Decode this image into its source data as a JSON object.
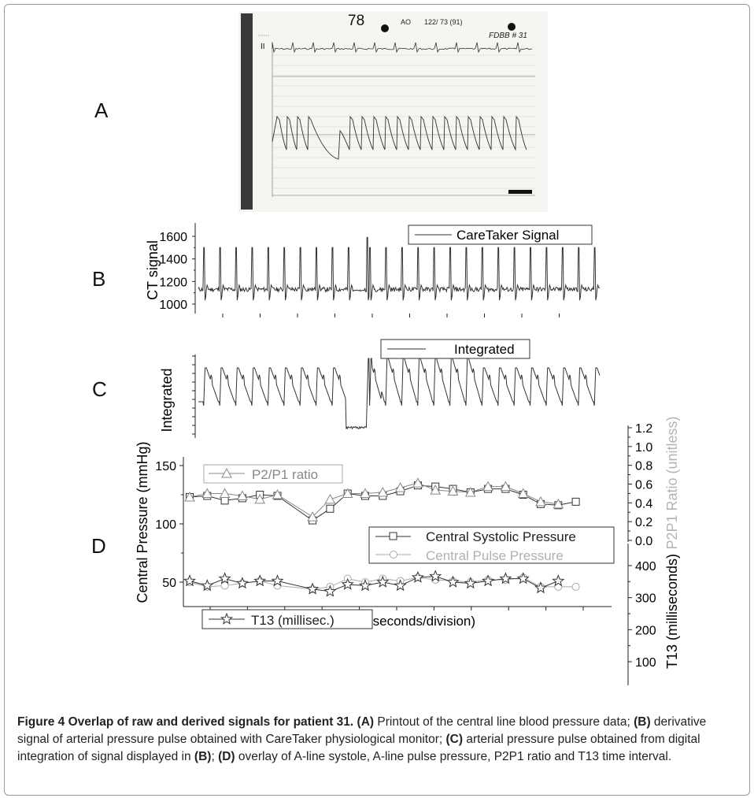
{
  "panel_labels": [
    "A",
    "B",
    "C",
    "D"
  ],
  "printout": {
    "heart_rate": "78",
    "bp_label": "AO",
    "bp_value": "122/ 73 (91)",
    "handwritten_id": "FDBB # 31",
    "lead": "II",
    "colors": {
      "paper": "#f5f5f2",
      "ink": "#333333",
      "margin_bar": "#3a3a3a"
    }
  },
  "caption": {
    "title": "Figure 4 Overlap of raw and derived signals for patient 31.",
    "a_tag": "(A)",
    "a_text": " Printout of the central line blood pressure data; ",
    "b_tag": "(B)",
    "b_text": " derivative signal of arterial pressure pulse obtained with CareTaker physiological monitor; ",
    "c_tag": "(C)",
    "c_text": " arterial pressure pulse obtained from digital integration of signal displayed in ",
    "c_ref": "(B)",
    "sep": "; ",
    "d_tag": "(D)",
    "d_text": " overlay of A-line systole, A-line pulse pressure, P2P1 ratio and T13 time interval."
  },
  "chart_data": [
    {
      "panel": "B",
      "type": "line",
      "ylabel": "CT signal",
      "ylim": [
        950,
        1680
      ],
      "yticks": [
        "1000",
        "1200",
        "1400",
        "1600"
      ],
      "legend": "CareTaker Signal",
      "legend_position": "top-right",
      "beat_times": [
        2,
        8,
        14,
        20,
        26,
        32,
        38,
        44,
        50,
        56,
        63,
        64,
        70,
        76,
        82,
        88,
        94,
        100,
        106,
        112,
        118,
        124,
        130,
        136,
        142,
        148
      ],
      "baseline": 1130,
      "peak": 1500,
      "trough": 1010,
      "color": "#333333"
    },
    {
      "panel": "C",
      "type": "line",
      "ylabel": "Integrated",
      "legend": "Integrated",
      "legend_position": "top-right",
      "tick_labels_shown": false,
      "beat_times": [
        2,
        8,
        14,
        20,
        26,
        32,
        38,
        44,
        50,
        56,
        63,
        64,
        70,
        76,
        82,
        88,
        94,
        100,
        106,
        112,
        118,
        124,
        130,
        136,
        142,
        148
      ],
      "color": "#333333"
    },
    {
      "panel": "D",
      "type": "line",
      "xlabel": "Time (2 seconds/division)",
      "ylabel_left": "Central Pressure (mmHg)",
      "ylim_left": [
        20,
        155
      ],
      "yticks_left": [
        "50",
        "100",
        "150"
      ],
      "ylabel_right_top": "P2P1 Ratio (unitless)",
      "ylim_right_top": [
        0.0,
        1.2
      ],
      "yticks_right_top": [
        "0.0",
        "0.2",
        "0.4",
        "0.6",
        "0.8",
        "1.0",
        "1.2"
      ],
      "ylabel_right_bottom": "T13 (milliseconds)",
      "ylim_right_bottom": [
        50,
        450
      ],
      "yticks_right_bottom": [
        "100",
        "200",
        "300",
        "400"
      ],
      "x_divisions": 10,
      "x": [
        0,
        1,
        2,
        3,
        4,
        5,
        6,
        7,
        8,
        9,
        10,
        11,
        12,
        13,
        14,
        15,
        16,
        17,
        18,
        19,
        20,
        21,
        22,
        23
      ],
      "series": [
        {
          "name": "Central Systolic Pressure",
          "marker": "square",
          "color": "#333333",
          "values": [
            123,
            124,
            120,
            122,
            125,
            124,
            null,
            103,
            113,
            126,
            124,
            124,
            128,
            133,
            132,
            130,
            127,
            130,
            130,
            125,
            117,
            116,
            119,
            null
          ]
        },
        {
          "name": "P2/P1 ratio",
          "marker": "triangle",
          "color": "#888888",
          "values": [
            123,
            126,
            126,
            124,
            121,
            125,
            null,
            106,
            121,
            126,
            126,
            127,
            131,
            135,
            129,
            128,
            127,
            132,
            132,
            126,
            119,
            117,
            null,
            null
          ]
        },
        {
          "name": "Central Pulse Pressure",
          "marker": "circle",
          "color": "#aaaaaa",
          "values": [
            50,
            46,
            47,
            49,
            51,
            47,
            null,
            44,
            46,
            53,
            50,
            53,
            51,
            54,
            52,
            51,
            50,
            52,
            52,
            54,
            46,
            46,
            46,
            null
          ]
        },
        {
          "name": "T13 (millisec.)",
          "marker": "star",
          "color": "#333333",
          "values": [
            51,
            47,
            53,
            49,
            51,
            51,
            null,
            44,
            42,
            48,
            47,
            50,
            47,
            54,
            55,
            50,
            49,
            51,
            53,
            53,
            45,
            51,
            null,
            null
          ]
        }
      ]
    }
  ]
}
